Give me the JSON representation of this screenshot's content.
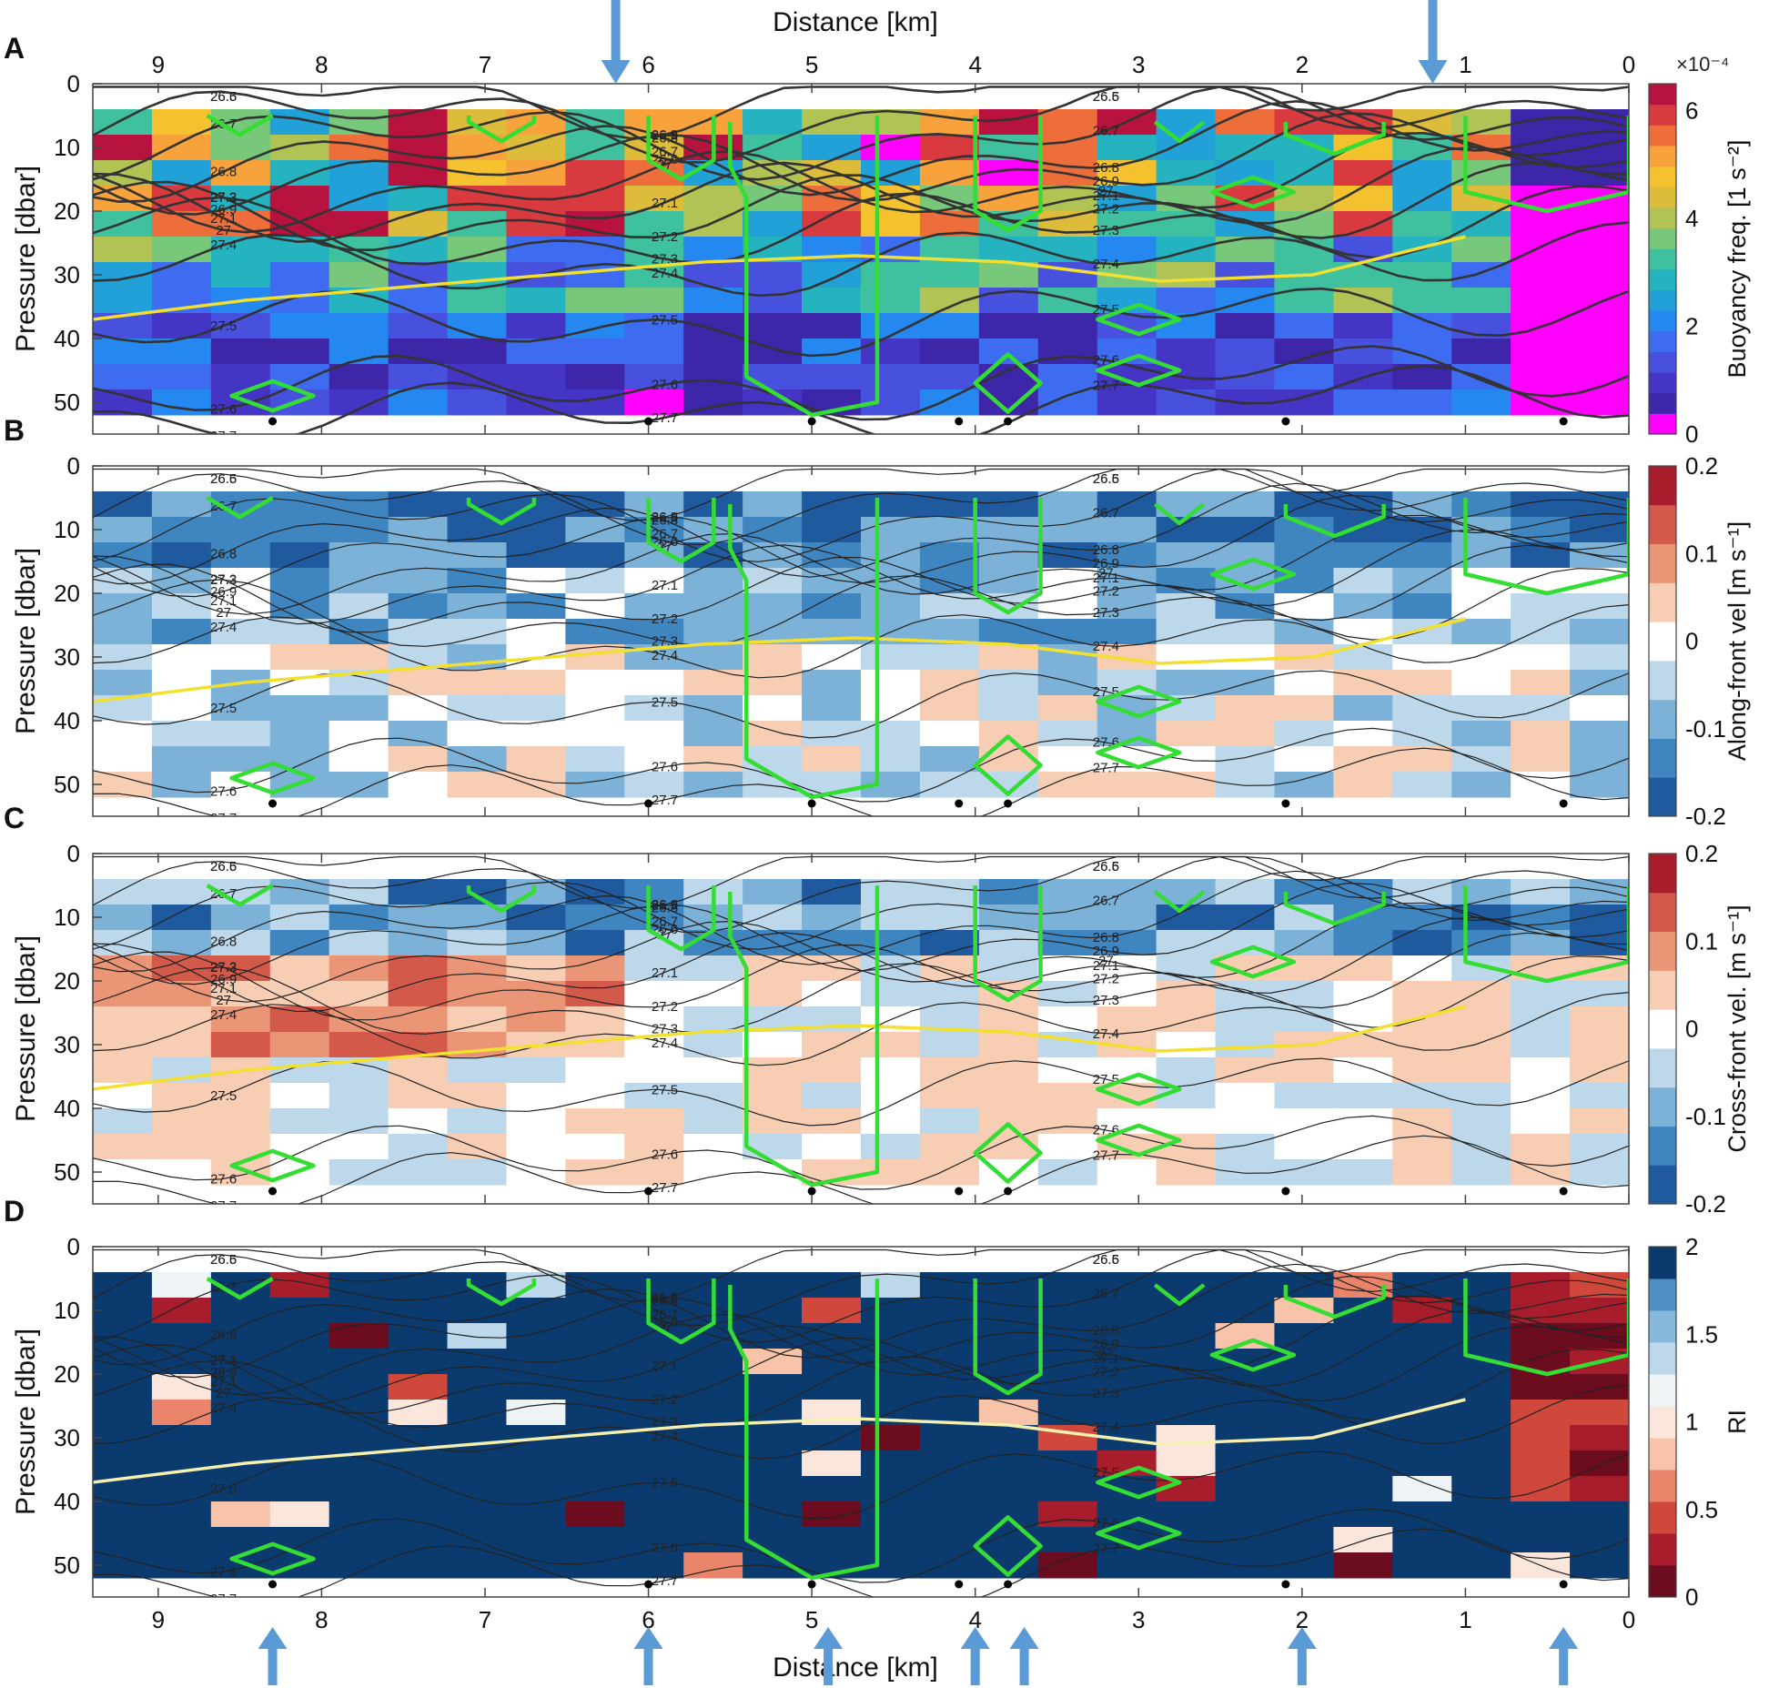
{
  "figure": {
    "x_axis_label_top": "Distance [km]",
    "x_axis_label_bottom": "Distance [km]",
    "x_ticks": [
      "9",
      "8",
      "7",
      "6",
      "5",
      "4",
      "3",
      "2",
      "1",
      "0"
    ],
    "y_ticks": [
      "0",
      "10",
      "20",
      "30",
      "40",
      "50"
    ],
    "top_arrow_positions_km": [
      6.2,
      1.2
    ],
    "bottom_arrow_positions_km": [
      8.3,
      6.0,
      4.9,
      4.0,
      3.7,
      2.0,
      0.4
    ]
  },
  "colors": {
    "green_outline": "#33dd33",
    "yellow_line": "#f2e030",
    "arrow_blue": "#5b9bd5",
    "magenta": "#ff00ff"
  },
  "chart_data": [
    {
      "type": "heatmap",
      "panel_letter": "A",
      "ylabel": "Pressure [dbar]",
      "xlabel": "Distance [km]",
      "colorbar_label": "Buoyancy freq. [1 s⁻²]",
      "colorbar_exponent": "×10⁻⁴",
      "colorbar_ticks": [
        "6",
        "4",
        "2",
        "0"
      ],
      "colorbar_range": [
        0,
        6.5
      ],
      "colormap": "parula-like",
      "xlim": [
        9.4,
        0
      ],
      "ylim": [
        55,
        0
      ],
      "contour_labels": [
        "26.5",
        "26.6",
        "26.7",
        "26.8",
        "26.9",
        "27",
        "27.1",
        "27.2",
        "27.3",
        "27.4",
        "27.5",
        "27.6",
        "27.7"
      ],
      "mixed_layer_depth_dbar": [
        37,
        34,
        32,
        30,
        28,
        27,
        28,
        31,
        30,
        24
      ]
    },
    {
      "type": "heatmap",
      "panel_letter": "B",
      "ylabel": "Pressure [dbar]",
      "xlabel": "Distance [km]",
      "colorbar_label": "Along-front vel [m s⁻¹]",
      "colorbar_ticks": [
        "0.2",
        "0.1",
        "0",
        "-0.1",
        "-0.2"
      ],
      "colorbar_range": [
        -0.2,
        0.2
      ],
      "colormap": "red-blue diverging",
      "xlim": [
        9.4,
        0
      ],
      "ylim": [
        55,
        0
      ]
    },
    {
      "type": "heatmap",
      "panel_letter": "C",
      "ylabel": "Pressure [dbar]",
      "xlabel": "Distance [km]",
      "colorbar_label": "Cross-front vel. [m s⁻¹]",
      "colorbar_ticks": [
        "0.2",
        "0.1",
        "0",
        "-0.1",
        "-0.2"
      ],
      "colorbar_range": [
        -0.2,
        0.2
      ],
      "colormap": "red-blue diverging",
      "xlim": [
        9.4,
        0
      ],
      "ylim": [
        55,
        0
      ]
    },
    {
      "type": "heatmap",
      "panel_letter": "D",
      "ylabel": "Pressure [dbar]",
      "xlabel": "Distance [km]",
      "colorbar_label": "RI",
      "colorbar_ticks": [
        "2",
        "1.5",
        "1",
        "0.5",
        "0"
      ],
      "colorbar_range": [
        0,
        2
      ],
      "colormap": "red-blue diverging",
      "xlim": [
        9.4,
        0
      ],
      "ylim": [
        55,
        0
      ]
    }
  ]
}
